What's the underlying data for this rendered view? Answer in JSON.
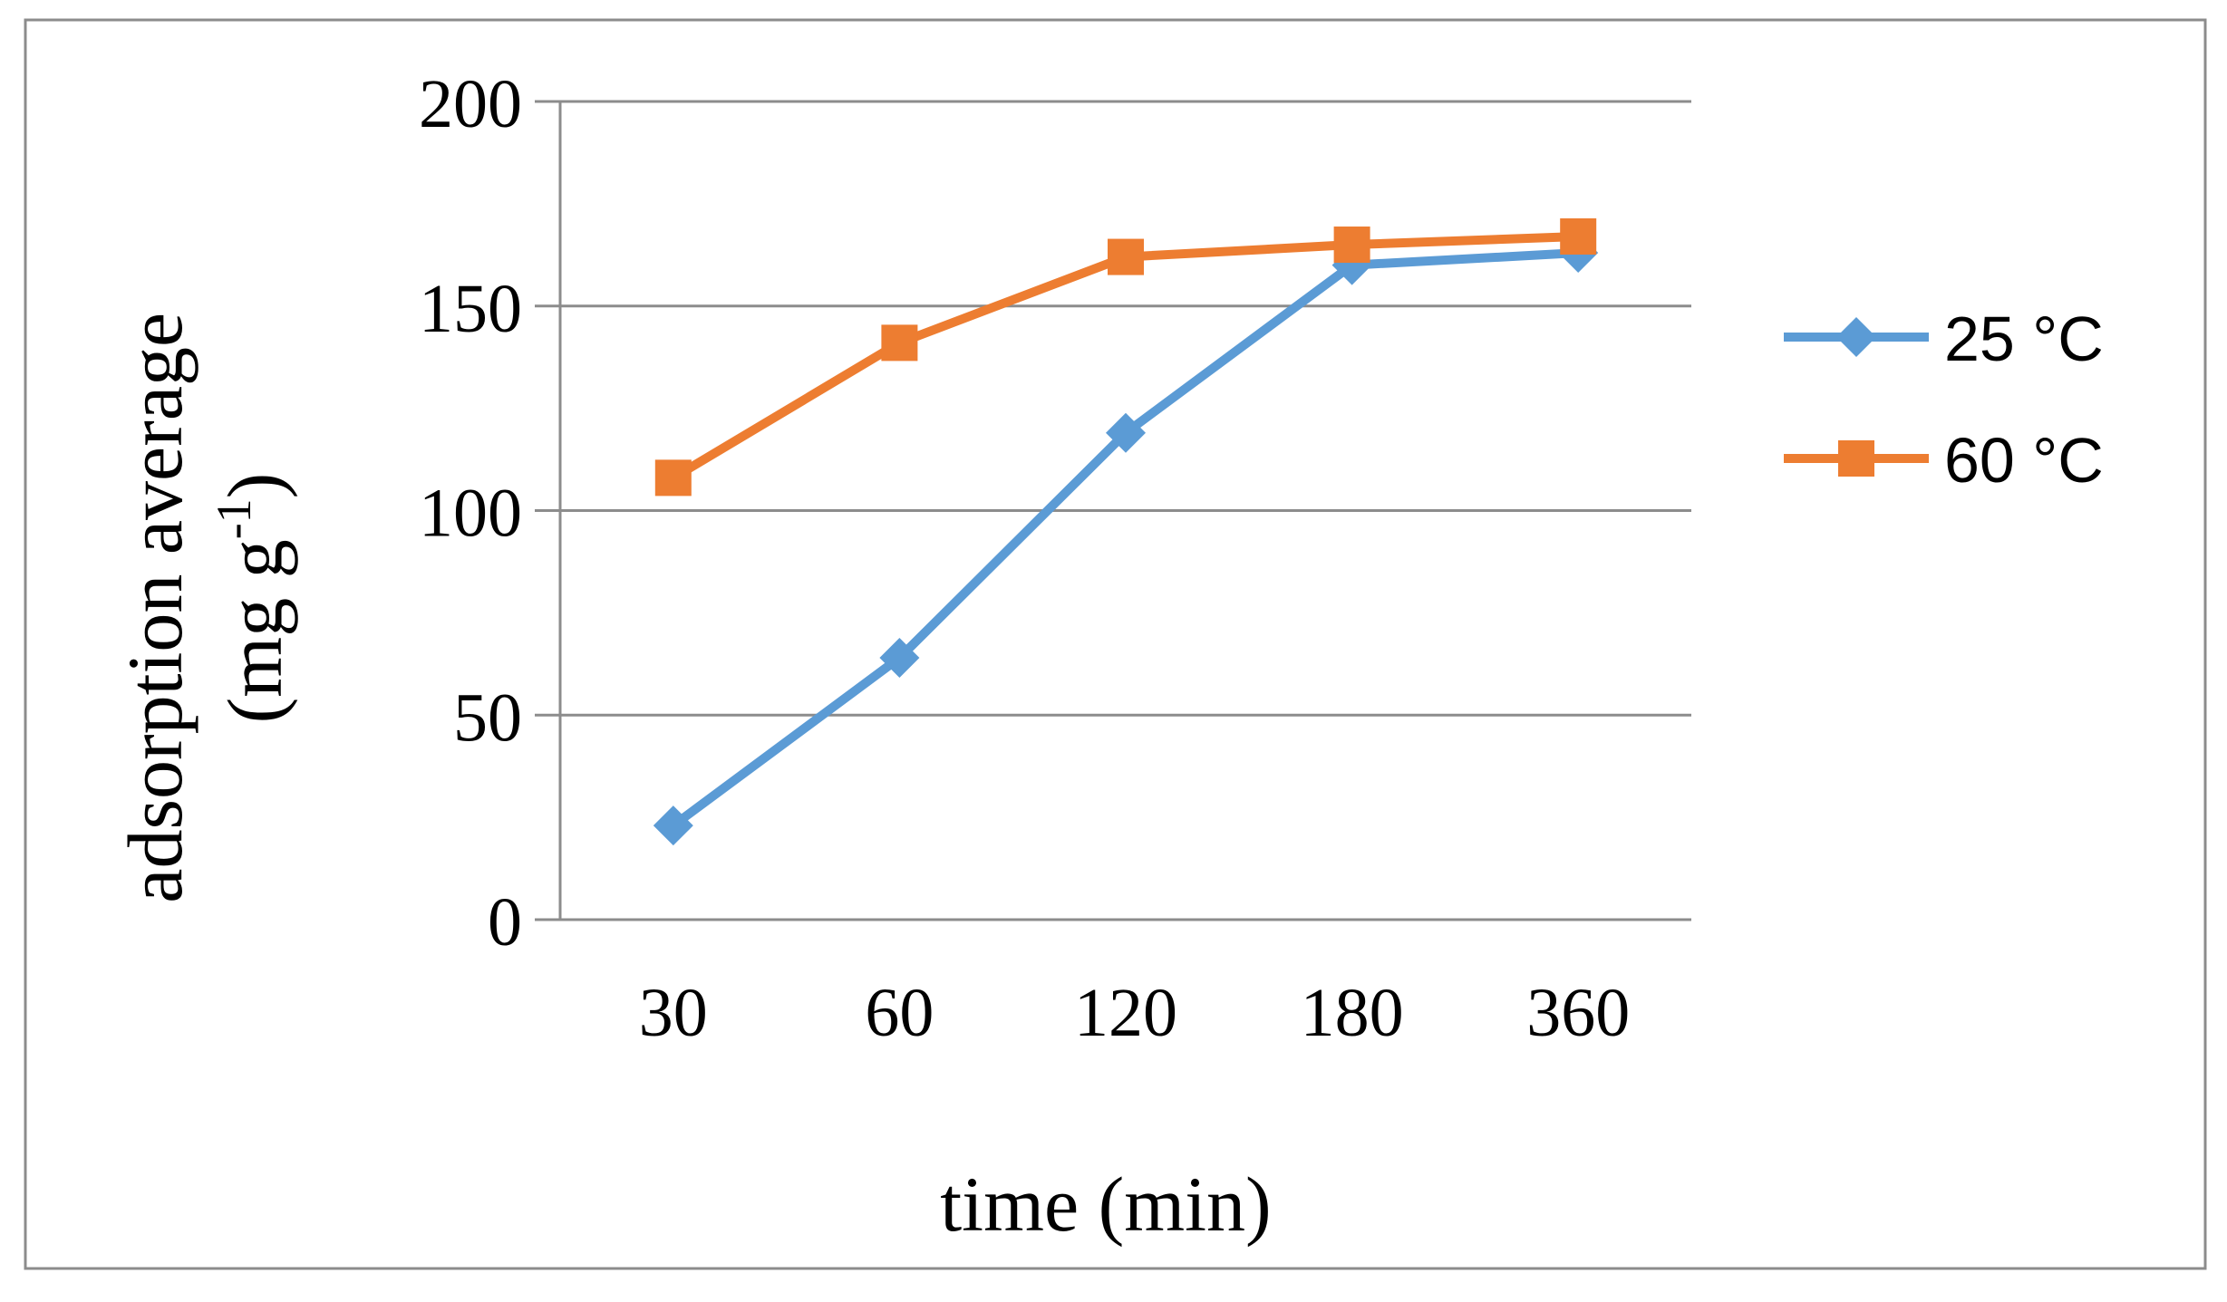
{
  "chart_data": {
    "type": "line",
    "title": "",
    "xlabel": "time (min)",
    "ylabel_main": "adsorption average",
    "ylabel_unit_prefix": "(mg g",
    "ylabel_unit_superscript": "-1",
    "ylabel_unit_suffix": ")",
    "categories": [
      "30",
      "60",
      "120",
      "180",
      "360"
    ],
    "ylim": [
      0,
      200
    ],
    "yticks": [
      "0",
      "50",
      "100",
      "150",
      "200"
    ],
    "grid": true,
    "legend_position": "right",
    "series": [
      {
        "name": "25 °C",
        "color": "#5B9BD5",
        "marker": "diamond",
        "values": [
          23,
          64,
          119,
          160,
          163
        ]
      },
      {
        "name": "60 °C",
        "color": "#ED7D31",
        "marker": "square",
        "values": [
          108,
          141,
          162,
          165,
          167
        ]
      }
    ]
  }
}
